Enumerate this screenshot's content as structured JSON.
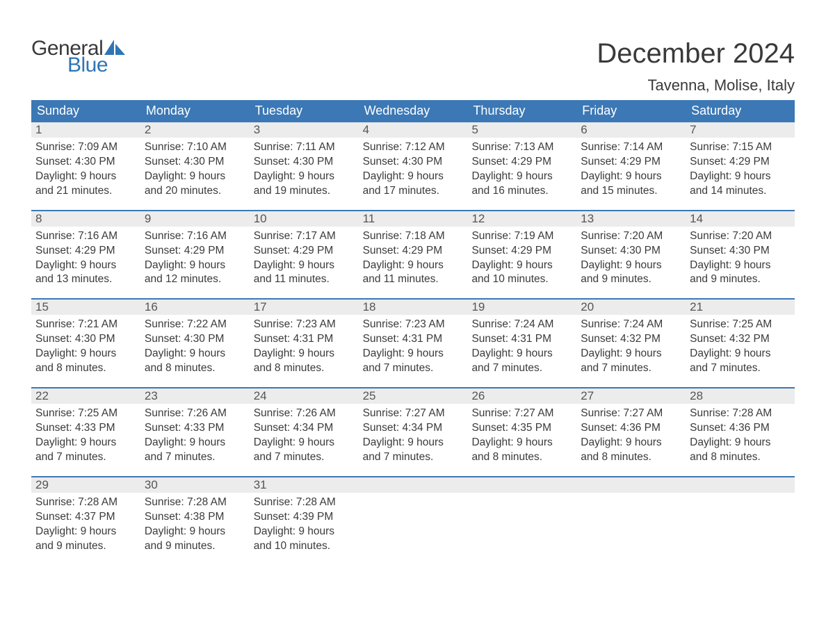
{
  "brand": {
    "word1": "General",
    "word2": "Blue",
    "word1_color": "#3a3a3a",
    "word2_color": "#2e75b6",
    "sail_color": "#2e75b6"
  },
  "title": "December 2024",
  "location": "Tavenna, Molise, Italy",
  "colors": {
    "header_bg": "#3b78b5",
    "header_text": "#ffffff",
    "daynum_bg": "#ececec",
    "daynum_text": "#555555",
    "body_text": "#3a3a3a",
    "week_border": "#3b78b5",
    "page_bg": "#ffffff"
  },
  "weekdays": [
    "Sunday",
    "Monday",
    "Tuesday",
    "Wednesday",
    "Thursday",
    "Friday",
    "Saturday"
  ],
  "labels": {
    "sunrise": "Sunrise:",
    "sunset": "Sunset:",
    "daylight": "Daylight:"
  },
  "weeks": [
    [
      {
        "num": "1",
        "sunrise": "7:09 AM",
        "sunset": "4:30 PM",
        "daylight1": "9 hours",
        "daylight2": "and 21 minutes."
      },
      {
        "num": "2",
        "sunrise": "7:10 AM",
        "sunset": "4:30 PM",
        "daylight1": "9 hours",
        "daylight2": "and 20 minutes."
      },
      {
        "num": "3",
        "sunrise": "7:11 AM",
        "sunset": "4:30 PM",
        "daylight1": "9 hours",
        "daylight2": "and 19 minutes."
      },
      {
        "num": "4",
        "sunrise": "7:12 AM",
        "sunset": "4:30 PM",
        "daylight1": "9 hours",
        "daylight2": "and 17 minutes."
      },
      {
        "num": "5",
        "sunrise": "7:13 AM",
        "sunset": "4:29 PM",
        "daylight1": "9 hours",
        "daylight2": "and 16 minutes."
      },
      {
        "num": "6",
        "sunrise": "7:14 AM",
        "sunset": "4:29 PM",
        "daylight1": "9 hours",
        "daylight2": "and 15 minutes."
      },
      {
        "num": "7",
        "sunrise": "7:15 AM",
        "sunset": "4:29 PM",
        "daylight1": "9 hours",
        "daylight2": "and 14 minutes."
      }
    ],
    [
      {
        "num": "8",
        "sunrise": "7:16 AM",
        "sunset": "4:29 PM",
        "daylight1": "9 hours",
        "daylight2": "and 13 minutes."
      },
      {
        "num": "9",
        "sunrise": "7:16 AM",
        "sunset": "4:29 PM",
        "daylight1": "9 hours",
        "daylight2": "and 12 minutes."
      },
      {
        "num": "10",
        "sunrise": "7:17 AM",
        "sunset": "4:29 PM",
        "daylight1": "9 hours",
        "daylight2": "and 11 minutes."
      },
      {
        "num": "11",
        "sunrise": "7:18 AM",
        "sunset": "4:29 PM",
        "daylight1": "9 hours",
        "daylight2": "and 11 minutes."
      },
      {
        "num": "12",
        "sunrise": "7:19 AM",
        "sunset": "4:29 PM",
        "daylight1": "9 hours",
        "daylight2": "and 10 minutes."
      },
      {
        "num": "13",
        "sunrise": "7:20 AM",
        "sunset": "4:30 PM",
        "daylight1": "9 hours",
        "daylight2": "and 9 minutes."
      },
      {
        "num": "14",
        "sunrise": "7:20 AM",
        "sunset": "4:30 PM",
        "daylight1": "9 hours",
        "daylight2": "and 9 minutes."
      }
    ],
    [
      {
        "num": "15",
        "sunrise": "7:21 AM",
        "sunset": "4:30 PM",
        "daylight1": "9 hours",
        "daylight2": "and 8 minutes."
      },
      {
        "num": "16",
        "sunrise": "7:22 AM",
        "sunset": "4:30 PM",
        "daylight1": "9 hours",
        "daylight2": "and 8 minutes."
      },
      {
        "num": "17",
        "sunrise": "7:23 AM",
        "sunset": "4:31 PM",
        "daylight1": "9 hours",
        "daylight2": "and 8 minutes."
      },
      {
        "num": "18",
        "sunrise": "7:23 AM",
        "sunset": "4:31 PM",
        "daylight1": "9 hours",
        "daylight2": "and 7 minutes."
      },
      {
        "num": "19",
        "sunrise": "7:24 AM",
        "sunset": "4:31 PM",
        "daylight1": "9 hours",
        "daylight2": "and 7 minutes."
      },
      {
        "num": "20",
        "sunrise": "7:24 AM",
        "sunset": "4:32 PM",
        "daylight1": "9 hours",
        "daylight2": "and 7 minutes."
      },
      {
        "num": "21",
        "sunrise": "7:25 AM",
        "sunset": "4:32 PM",
        "daylight1": "9 hours",
        "daylight2": "and 7 minutes."
      }
    ],
    [
      {
        "num": "22",
        "sunrise": "7:25 AM",
        "sunset": "4:33 PM",
        "daylight1": "9 hours",
        "daylight2": "and 7 minutes."
      },
      {
        "num": "23",
        "sunrise": "7:26 AM",
        "sunset": "4:33 PM",
        "daylight1": "9 hours",
        "daylight2": "and 7 minutes."
      },
      {
        "num": "24",
        "sunrise": "7:26 AM",
        "sunset": "4:34 PM",
        "daylight1": "9 hours",
        "daylight2": "and 7 minutes."
      },
      {
        "num": "25",
        "sunrise": "7:27 AM",
        "sunset": "4:34 PM",
        "daylight1": "9 hours",
        "daylight2": "and 7 minutes."
      },
      {
        "num": "26",
        "sunrise": "7:27 AM",
        "sunset": "4:35 PM",
        "daylight1": "9 hours",
        "daylight2": "and 8 minutes."
      },
      {
        "num": "27",
        "sunrise": "7:27 AM",
        "sunset": "4:36 PM",
        "daylight1": "9 hours",
        "daylight2": "and 8 minutes."
      },
      {
        "num": "28",
        "sunrise": "7:28 AM",
        "sunset": "4:36 PM",
        "daylight1": "9 hours",
        "daylight2": "and 8 minutes."
      }
    ],
    [
      {
        "num": "29",
        "sunrise": "7:28 AM",
        "sunset": "4:37 PM",
        "daylight1": "9 hours",
        "daylight2": "and 9 minutes."
      },
      {
        "num": "30",
        "sunrise": "7:28 AM",
        "sunset": "4:38 PM",
        "daylight1": "9 hours",
        "daylight2": "and 9 minutes."
      },
      {
        "num": "31",
        "sunrise": "7:28 AM",
        "sunset": "4:39 PM",
        "daylight1": "9 hours",
        "daylight2": "and 10 minutes."
      },
      null,
      null,
      null,
      null
    ]
  ]
}
